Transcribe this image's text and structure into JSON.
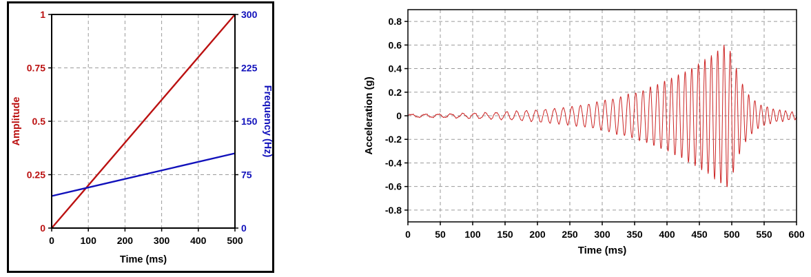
{
  "page": {
    "background": "#ffffff"
  },
  "chart_data": [
    {
      "id": "sweep-parameters",
      "type": "line",
      "title": "",
      "xlabel": "Time (ms)",
      "xlim": [
        0,
        500
      ],
      "xticks": [
        0,
        100,
        200,
        300,
        400,
        500
      ],
      "grid": true,
      "legend": "none",
      "frame_color": "#000000",
      "axes": {
        "left": {
          "label": "Amplitude",
          "color": "#bb1111",
          "lim": [
            0,
            1
          ],
          "ticks": [
            0,
            0.25,
            0.5,
            0.75,
            1
          ]
        },
        "right": {
          "label": "Frequency (Hz)",
          "color": "#1111bb",
          "lim": [
            0,
            300
          ],
          "ticks": [
            0,
            75,
            150,
            225,
            300
          ]
        }
      },
      "series": [
        {
          "name": "Amplitude",
          "axis": "left",
          "color": "#bb1111",
          "points": [
            [
              0,
              0
            ],
            [
              500,
              1
            ]
          ]
        },
        {
          "name": "Frequency",
          "axis": "right",
          "color": "#1111bb",
          "points": [
            [
              0,
              45
            ],
            [
              500,
              105
            ]
          ]
        }
      ]
    },
    {
      "id": "acceleration-signal",
      "type": "line",
      "title": "",
      "xlabel": "Time (ms)",
      "ylabel": "Acceleration (g)",
      "xlim": [
        0,
        600
      ],
      "ylim": [
        -0.9,
        0.9
      ],
      "xticks": [
        0,
        50,
        100,
        150,
        200,
        250,
        300,
        350,
        400,
        450,
        500,
        550,
        600
      ],
      "yticks": [
        0.8,
        0.6,
        0.4,
        0.2,
        0,
        -0.2,
        -0.4,
        -0.6,
        -0.8
      ],
      "grid": true,
      "legend": "none",
      "frame_color": "#000000",
      "series": [
        {
          "name": "Acceleration",
          "axis": "left",
          "color": "#cc2222",
          "signal": {
            "kind": "chirp",
            "freq_start_hz": 45,
            "freq_end_hz": 105,
            "sweep_ms": 500,
            "noise_amplitude": 0.006,
            "envelope_points": [
              [
                0,
                0.012
              ],
              [
                60,
                0.015
              ],
              [
                120,
                0.025
              ],
              [
                160,
                0.035
              ],
              [
                200,
                0.05
              ],
              [
                240,
                0.07
              ],
              [
                280,
                0.1
              ],
              [
                320,
                0.15
              ],
              [
                360,
                0.21
              ],
              [
                400,
                0.3
              ],
              [
                430,
                0.38
              ],
              [
                460,
                0.48
              ],
              [
                480,
                0.56
              ],
              [
                492,
                0.62
              ],
              [
                500,
                0.52
              ],
              [
                510,
                0.35
              ],
              [
                525,
                0.18
              ],
              [
                545,
                0.09
              ],
              [
                570,
                0.05
              ],
              [
                600,
                0.03
              ]
            ]
          }
        }
      ]
    }
  ]
}
